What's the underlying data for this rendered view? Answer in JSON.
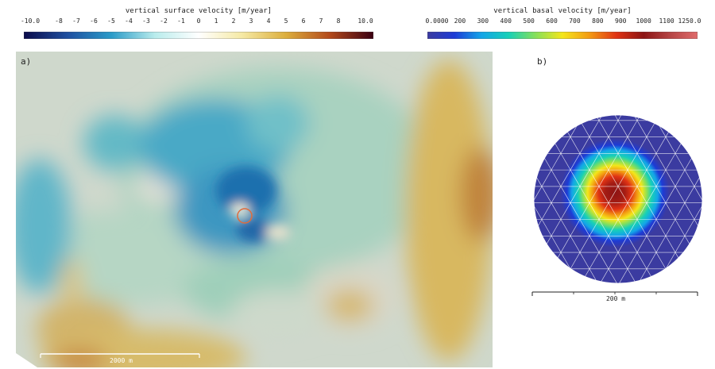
{
  "colorbar_surface": {
    "title": "vertical surface velocity [m/year]",
    "ticks": [
      "-10.0",
      "-8",
      "-7",
      "-6",
      "-5",
      "-4",
      "-3",
      "-2",
      "-1",
      "0",
      "1",
      "2",
      "3",
      "4",
      "5",
      "6",
      "7",
      "8",
      "10.0"
    ],
    "range": [
      -10,
      10
    ],
    "colors": [
      "#0b0b4a",
      "#1f4fa0",
      "#2a9bc8",
      "#b9ecec",
      "#ffffff",
      "#f5e9a4",
      "#dcae3c",
      "#b3491b",
      "#3a0012"
    ]
  },
  "colorbar_basal": {
    "title": "vertical basal velocity [m/year]",
    "ticks": [
      "0.0000",
      "200",
      "300",
      "400",
      "500",
      "600",
      "700",
      "800",
      "900",
      "1000",
      "1100",
      "1250.0"
    ],
    "range": [
      0,
      1250
    ],
    "colors": [
      "#3b3ba0",
      "#1d3bd6",
      "#13a5e8",
      "#17d0b8",
      "#86e05a",
      "#f4e61a",
      "#f39a12",
      "#e03314",
      "#8c1414",
      "#b64545",
      "#e06b6b"
    ]
  },
  "panel_a": {
    "label": "a)",
    "scale_bar_label": "2000 m",
    "marker_color": "#e06b3c"
  },
  "panel_b": {
    "label": "b)",
    "scale_bar_label": "200 m"
  }
}
